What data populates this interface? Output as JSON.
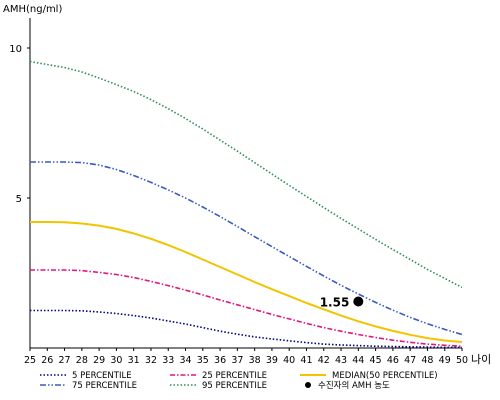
{
  "chart_data": {
    "type": "line",
    "ylabel": "AMH(ng/ml)",
    "xlabel": "나이",
    "xlim": [
      25,
      50
    ],
    "ylim": [
      0,
      11
    ],
    "x_ticks": [
      25,
      26,
      27,
      28,
      29,
      30,
      31,
      32,
      33,
      34,
      35,
      36,
      37,
      38,
      39,
      40,
      41,
      42,
      43,
      44,
      45,
      46,
      47,
      48,
      49,
      50
    ],
    "y_ticks": [
      5,
      10
    ],
    "grid": false,
    "legend_position": "bottom",
    "x": [
      25,
      26,
      27,
      28,
      29,
      30,
      31,
      32,
      33,
      34,
      35,
      36,
      37,
      38,
      39,
      40,
      41,
      42,
      43,
      44,
      45,
      46,
      47,
      48,
      49,
      50
    ],
    "series": [
      {
        "name": "5 PERCENTILE",
        "color": "#000080",
        "dash": "dotted",
        "values": [
          1.25,
          1.25,
          1.25,
          1.24,
          1.2,
          1.15,
          1.08,
          1.0,
          0.9,
          0.8,
          0.68,
          0.56,
          0.46,
          0.37,
          0.3,
          0.24,
          0.18,
          0.13,
          0.1,
          0.08,
          0.06,
          0.05,
          0.04,
          0.03,
          0.02,
          0.02
        ]
      },
      {
        "name": "25 PERCENTILE",
        "color": "#e0177f",
        "dash": "dashdot",
        "values": [
          2.6,
          2.6,
          2.6,
          2.58,
          2.52,
          2.45,
          2.35,
          2.22,
          2.08,
          1.93,
          1.77,
          1.6,
          1.44,
          1.28,
          1.12,
          0.97,
          0.82,
          0.68,
          0.56,
          0.45,
          0.35,
          0.26,
          0.19,
          0.13,
          0.09,
          0.06
        ]
      },
      {
        "name": "MEDIAN(50 PERCENTILE)",
        "color": "#f2c400",
        "dash": "solid",
        "values": [
          4.2,
          4.2,
          4.19,
          4.15,
          4.08,
          3.97,
          3.82,
          3.64,
          3.43,
          3.2,
          2.95,
          2.7,
          2.45,
          2.2,
          1.96,
          1.73,
          1.5,
          1.29,
          1.08,
          0.89,
          0.72,
          0.57,
          0.44,
          0.33,
          0.25,
          0.2
        ]
      },
      {
        "name": "75 PERCENTILE",
        "color": "#3a5bbf",
        "dash": "dashdotdot",
        "values": [
          6.2,
          6.2,
          6.2,
          6.18,
          6.1,
          5.95,
          5.75,
          5.52,
          5.27,
          5.0,
          4.7,
          4.38,
          4.05,
          3.71,
          3.38,
          3.05,
          2.72,
          2.4,
          2.09,
          1.8,
          1.52,
          1.26,
          1.02,
          0.81,
          0.62,
          0.45
        ]
      },
      {
        "name": "95 PERCENTILE",
        "color": "#2e8b57",
        "dash": "dotted",
        "values": [
          9.55,
          9.45,
          9.35,
          9.2,
          9.0,
          8.78,
          8.55,
          8.28,
          7.98,
          7.65,
          7.3,
          6.93,
          6.56,
          6.18,
          5.8,
          5.42,
          5.05,
          4.68,
          4.32,
          3.97,
          3.62,
          3.28,
          2.95,
          2.62,
          2.32,
          2.02
        ]
      }
    ],
    "marker": {
      "name": "수진자의 AMH 농도",
      "x": 44,
      "y": 1.55,
      "label": "1.55",
      "color": "#000000"
    }
  }
}
